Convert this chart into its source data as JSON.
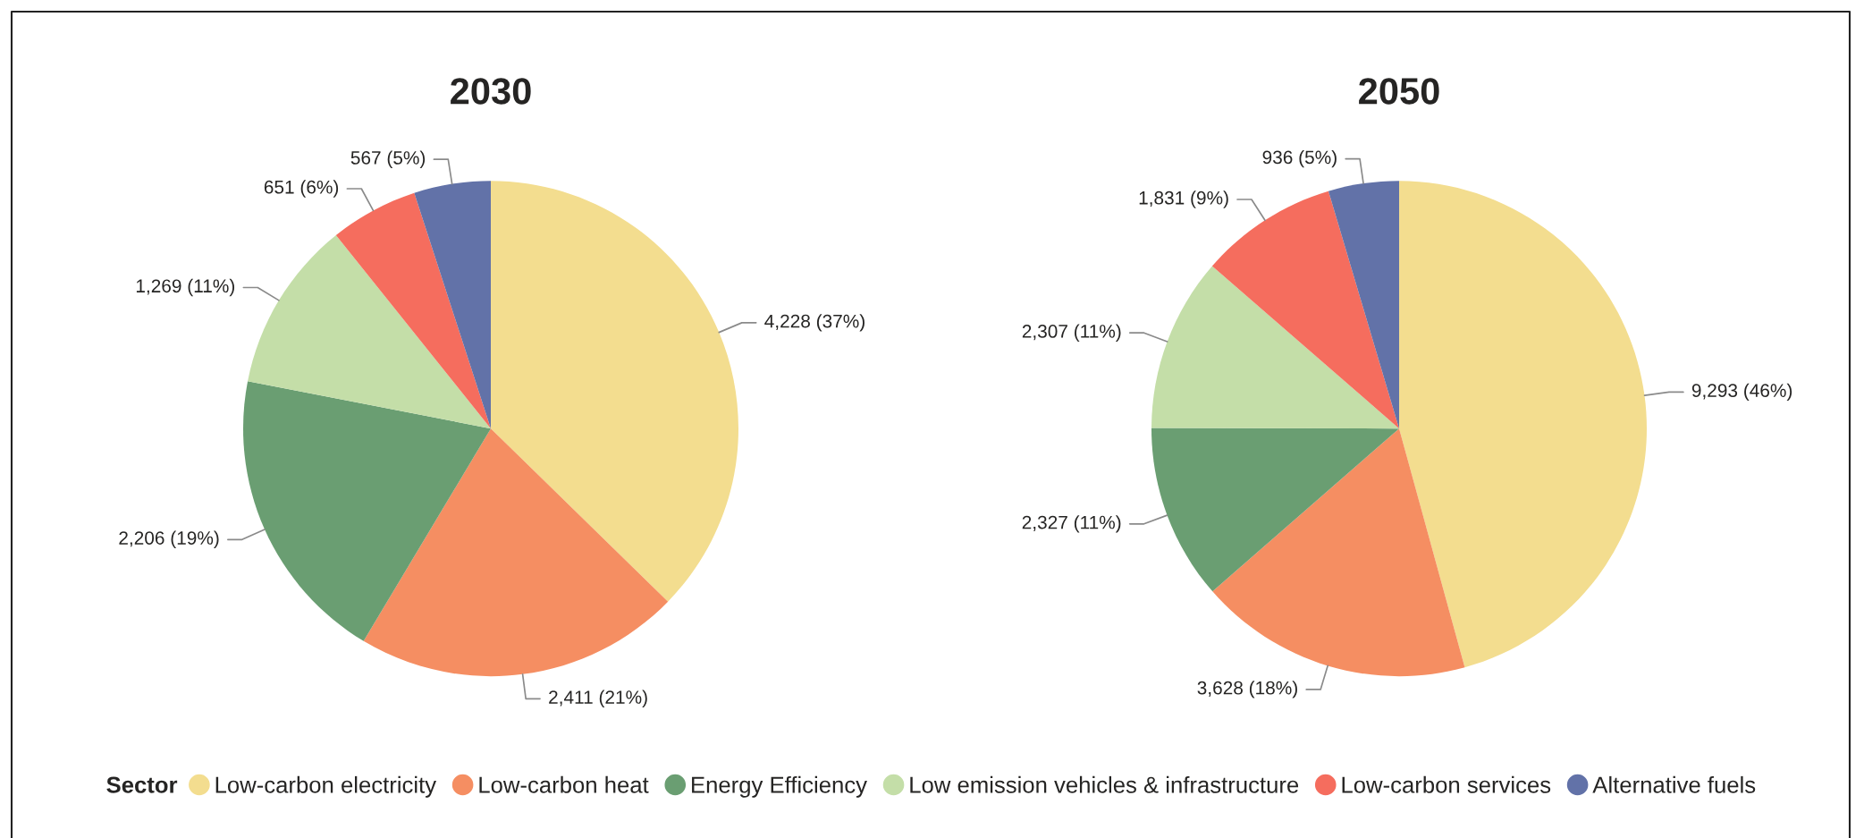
{
  "chart_data": {
    "type": "pie",
    "categories": [
      "Low-carbon electricity",
      "Low-carbon heat",
      "Energy Efficiency",
      "Low emission vehicles & infrastructure",
      "Low-carbon services",
      "Alternative fuels"
    ],
    "colors": [
      "#f3dd8f",
      "#f58e62",
      "#6a9e72",
      "#c4dea8",
      "#f56d5e",
      "#6272a8"
    ],
    "legend": "bottom",
    "legend_title": "Sector",
    "series": [
      {
        "name": "2030",
        "values": [
          4228,
          2411,
          2206,
          1269,
          651,
          567
        ],
        "value_labels": [
          "4,228 (37%)",
          "2,411 (21%)",
          "2,206 (19%)",
          "1,269 (11%)",
          "651 (6%)",
          "567 (5%)"
        ]
      },
      {
        "name": "2050",
        "values": [
          9293,
          3628,
          2327,
          2307,
          1831,
          936
        ],
        "value_labels": [
          "9,293 (46%)",
          "3,628 (18%)",
          "2,327 (11%)",
          "2,307 (11%)",
          "1,831 (9%)",
          "936 (5%)"
        ]
      }
    ]
  }
}
